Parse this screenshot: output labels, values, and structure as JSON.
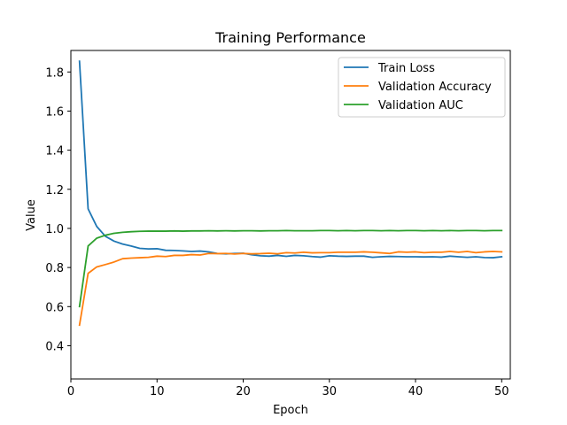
{
  "chart_data": {
    "type": "line",
    "title": "Training Performance",
    "xlabel": "Epoch",
    "ylabel": "Value",
    "xlim": [
      0,
      51
    ],
    "ylim": [
      0.23,
      1.91
    ],
    "xticks": [
      0,
      10,
      20,
      30,
      40,
      50
    ],
    "yticks": [
      0.4,
      0.6,
      0.8,
      1.0,
      1.2,
      1.4,
      1.6,
      1.8
    ],
    "legend_position": "top-right",
    "grid": false,
    "x": [
      1,
      2,
      3,
      4,
      5,
      6,
      7,
      8,
      9,
      10,
      11,
      12,
      13,
      14,
      15,
      16,
      17,
      18,
      19,
      20,
      21,
      22,
      23,
      24,
      25,
      26,
      27,
      28,
      29,
      30,
      31,
      32,
      33,
      34,
      35,
      36,
      37,
      38,
      39,
      40,
      41,
      42,
      43,
      44,
      45,
      46,
      47,
      48,
      49,
      50
    ],
    "series": [
      {
        "name": "Train Loss",
        "color": "#1f77b4",
        "values": [
          1.855,
          1.1,
          1.01,
          0.96,
          0.935,
          0.92,
          0.91,
          0.898,
          0.895,
          0.896,
          0.888,
          0.887,
          0.885,
          0.882,
          0.884,
          0.88,
          0.872,
          0.87,
          0.872,
          0.873,
          0.865,
          0.86,
          0.858,
          0.862,
          0.857,
          0.862,
          0.86,
          0.856,
          0.853,
          0.86,
          0.858,
          0.857,
          0.858,
          0.858,
          0.852,
          0.855,
          0.857,
          0.856,
          0.855,
          0.855,
          0.854,
          0.855,
          0.853,
          0.858,
          0.855,
          0.852,
          0.855,
          0.851,
          0.85,
          0.855
        ]
      },
      {
        "name": "Validation Accuracy",
        "color": "#ff7f0e",
        "values": [
          0.505,
          0.77,
          0.803,
          0.815,
          0.828,
          0.845,
          0.848,
          0.85,
          0.852,
          0.858,
          0.856,
          0.862,
          0.862,
          0.866,
          0.864,
          0.872,
          0.871,
          0.872,
          0.869,
          0.872,
          0.87,
          0.871,
          0.873,
          0.87,
          0.876,
          0.874,
          0.878,
          0.875,
          0.876,
          0.876,
          0.878,
          0.878,
          0.878,
          0.88,
          0.878,
          0.875,
          0.872,
          0.88,
          0.878,
          0.88,
          0.876,
          0.878,
          0.878,
          0.882,
          0.878,
          0.882,
          0.876,
          0.88,
          0.882,
          0.88
        ]
      },
      {
        "name": "Validation AUC",
        "color": "#2ca02c",
        "values": [
          0.6,
          0.91,
          0.95,
          0.965,
          0.975,
          0.98,
          0.983,
          0.985,
          0.986,
          0.986,
          0.986,
          0.987,
          0.986,
          0.987,
          0.987,
          0.988,
          0.987,
          0.988,
          0.987,
          0.988,
          0.988,
          0.987,
          0.988,
          0.988,
          0.989,
          0.988,
          0.988,
          0.988,
          0.989,
          0.989,
          0.988,
          0.989,
          0.988,
          0.989,
          0.989,
          0.988,
          0.989,
          0.988,
          0.989,
          0.989,
          0.988,
          0.989,
          0.988,
          0.989,
          0.988,
          0.989,
          0.989,
          0.988,
          0.989,
          0.989
        ]
      }
    ]
  }
}
